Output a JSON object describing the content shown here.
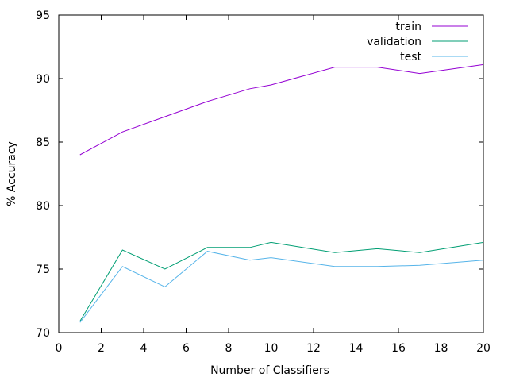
{
  "chart_data": {
    "type": "line",
    "title": "",
    "xlabel": "Number of Classifiers",
    "ylabel": "% Accuracy",
    "xlim": [
      0,
      20
    ],
    "ylim": [
      70,
      95
    ],
    "xticks": [
      0,
      2,
      4,
      6,
      8,
      10,
      12,
      14,
      16,
      18,
      20
    ],
    "yticks": [
      70,
      75,
      80,
      85,
      90,
      95
    ],
    "grid": false,
    "legend_position": "top-right",
    "series": [
      {
        "name": "train",
        "color": "#9400d3",
        "x": [
          1,
          3,
          5,
          7,
          9,
          10,
          13,
          15,
          17,
          20
        ],
        "y": [
          84.0,
          85.8,
          87.0,
          88.2,
          89.2,
          89.5,
          90.9,
          90.9,
          90.4,
          91.1
        ]
      },
      {
        "name": "validation",
        "color": "#009e73",
        "x": [
          1,
          3,
          5,
          7,
          9,
          10,
          13,
          15,
          17,
          20
        ],
        "y": [
          70.9,
          76.5,
          75.0,
          76.7,
          76.7,
          77.1,
          76.3,
          76.6,
          76.3,
          77.1
        ]
      },
      {
        "name": "test",
        "color": "#56b4e9",
        "x": [
          1,
          3,
          5,
          7,
          9,
          10,
          13,
          15,
          17,
          20
        ],
        "y": [
          70.8,
          75.2,
          73.6,
          76.4,
          75.7,
          75.9,
          75.2,
          75.2,
          75.3,
          75.7
        ]
      }
    ]
  }
}
